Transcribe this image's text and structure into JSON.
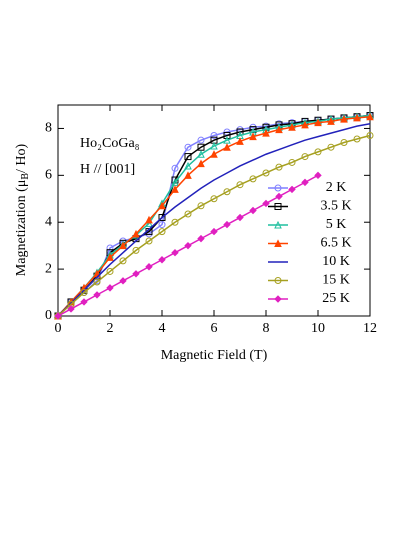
{
  "chart_data": {
    "type": "line",
    "annotations": [
      "Ho₂CoGa₈",
      "H // [001]"
    ],
    "xlabel": "Magnetic Field (T)",
    "ylabel": [
      "Magnetization (μ",
      "B",
      "/ Ho)"
    ],
    "x": [
      0,
      0.5,
      1,
      1.5,
      2,
      2.5,
      3,
      3.5,
      4,
      4.5,
      5,
      5.5,
      6,
      6.5,
      7,
      7.5,
      8,
      8.5,
      9,
      9.5,
      10,
      10.5,
      11,
      11.5,
      12
    ],
    "xlim": [
      0,
      12
    ],
    "xticks": [
      0,
      2,
      4,
      6,
      8,
      10,
      12
    ],
    "ylim": [
      0,
      9
    ],
    "yticks": [
      0,
      2,
      4,
      6,
      8
    ],
    "legend": "right",
    "series": [
      {
        "name": "2 K",
        "color": "#7f7fff",
        "marker": "circle-open",
        "values": [
          0,
          0.6,
          1.0,
          1.5,
          2.9,
          3.2,
          3.35,
          3.5,
          3.9,
          6.3,
          7.2,
          7.5,
          7.7,
          7.85,
          7.95,
          8.05,
          8.1,
          8.2,
          8.25,
          8.3,
          8.35,
          8.4,
          8.45,
          8.5,
          8.55
        ]
      },
      {
        "name": "3.5 K",
        "color": "#000000",
        "marker": "square-open",
        "values": [
          0,
          0.6,
          1.1,
          1.7,
          2.7,
          3.1,
          3.3,
          3.6,
          4.2,
          5.8,
          6.8,
          7.2,
          7.5,
          7.7,
          7.85,
          7.95,
          8.05,
          8.15,
          8.2,
          8.3,
          8.35,
          8.4,
          8.45,
          8.5,
          8.55
        ]
      },
      {
        "name": "5 K",
        "color": "#1fbf9f",
        "marker": "triangle-open",
        "values": [
          0,
          0.6,
          1.2,
          1.85,
          2.6,
          3.05,
          3.45,
          3.95,
          4.8,
          5.7,
          6.4,
          6.9,
          7.25,
          7.5,
          7.7,
          7.85,
          7.95,
          8.05,
          8.15,
          8.25,
          8.3,
          8.4,
          8.45,
          8.5,
          8.55
        ]
      },
      {
        "name": "6.5 K",
        "color": "#ff4400",
        "marker": "triangle-filled",
        "values": [
          0,
          0.6,
          1.2,
          1.8,
          2.5,
          3.0,
          3.5,
          4.1,
          4.7,
          5.4,
          6.0,
          6.5,
          6.9,
          7.2,
          7.45,
          7.65,
          7.8,
          7.95,
          8.05,
          8.15,
          8.25,
          8.3,
          8.4,
          8.45,
          8.5
        ]
      },
      {
        "name": "10 K",
        "color": "#2222bb",
        "marker": "none",
        "values": [
          0,
          0.55,
          1.1,
          1.65,
          2.2,
          2.7,
          3.2,
          3.7,
          4.2,
          4.65,
          5.05,
          5.45,
          5.8,
          6.1,
          6.4,
          6.65,
          6.9,
          7.1,
          7.3,
          7.5,
          7.65,
          7.8,
          7.95,
          8.1,
          8.2
        ]
      },
      {
        "name": "15 K",
        "color": "#a6a020",
        "marker": "circle-open",
        "values": [
          0,
          0.5,
          1.0,
          1.45,
          1.9,
          2.35,
          2.8,
          3.2,
          3.6,
          4.0,
          4.35,
          4.7,
          5.0,
          5.3,
          5.6,
          5.85,
          6.1,
          6.35,
          6.55,
          6.8,
          7.0,
          7.2,
          7.4,
          7.55,
          7.7
        ]
      },
      {
        "name": "25 K",
        "color": "#e020c0",
        "marker": "diamond",
        "values": [
          0,
          0.3,
          0.6,
          0.9,
          1.2,
          1.5,
          1.8,
          2.1,
          2.4,
          2.7,
          3.0,
          3.3,
          3.6,
          3.9,
          4.2,
          4.5,
          4.8,
          5.1,
          5.4,
          5.7,
          6.0,
          null,
          null,
          null,
          null
        ]
      }
    ]
  }
}
